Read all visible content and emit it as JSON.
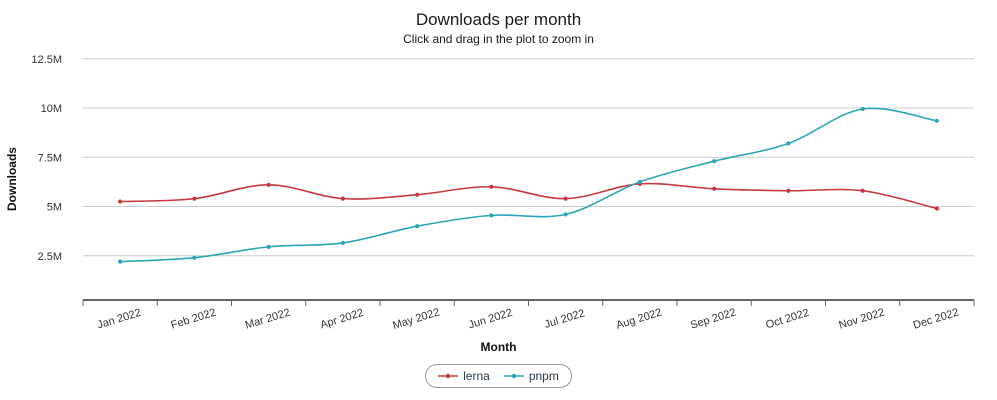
{
  "chart_data": {
    "type": "line",
    "title": "Downloads per month",
    "subtitle": "Click and drag in the plot to zoom in",
    "xlabel": "Month",
    "ylabel": "Downloads",
    "categories": [
      "Jan 2022",
      "Feb 2022",
      "Mar 2022",
      "Apr 2022",
      "May 2022",
      "Jun 2022",
      "Jul 2022",
      "Aug 2022",
      "Sep 2022",
      "Oct 2022",
      "Nov 2022",
      "Dec 2022"
    ],
    "y_ticks": [
      {
        "value": 2.5,
        "label": "2.5M"
      },
      {
        "value": 5,
        "label": "5M"
      },
      {
        "value": 7.5,
        "label": "7.5M"
      },
      {
        "value": 10,
        "label": "10M"
      },
      {
        "value": 12.5,
        "label": "12.5M"
      }
    ],
    "ylim": [
      0,
      13.5
    ],
    "units": "millions",
    "grid": true,
    "legend_position": "bottom",
    "series": [
      {
        "name": "lerna",
        "color": "#c7383f",
        "values": [
          5.25,
          5.4,
          6.1,
          5.4,
          5.6,
          6.0,
          5.4,
          6.15,
          5.9,
          5.8,
          5.8,
          4.9
        ]
      },
      {
        "name": "pnpm",
        "color": "#2aa6b7",
        "values": [
          2.2,
          2.4,
          2.95,
          3.15,
          4.0,
          4.55,
          4.6,
          6.25,
          7.3,
          8.2,
          9.95,
          9.35
        ]
      }
    ],
    "colors": {
      "grid": "#cccccc",
      "axis": "#333333",
      "tick_text": "#333333"
    }
  }
}
